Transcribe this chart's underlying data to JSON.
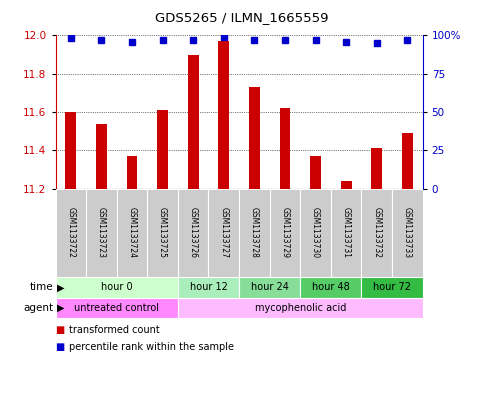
{
  "title": "GDS5265 / ILMN_1665559",
  "samples": [
    "GSM1133722",
    "GSM1133723",
    "GSM1133724",
    "GSM1133725",
    "GSM1133726",
    "GSM1133727",
    "GSM1133728",
    "GSM1133729",
    "GSM1133730",
    "GSM1133731",
    "GSM1133732",
    "GSM1133733"
  ],
  "bar_values": [
    11.6,
    11.54,
    11.37,
    11.61,
    11.9,
    11.97,
    11.73,
    11.62,
    11.37,
    11.24,
    11.41,
    11.49
  ],
  "percentile_values": [
    98,
    97,
    96,
    97,
    97,
    99,
    97,
    97,
    97,
    96,
    95,
    97
  ],
  "bar_color": "#CC0000",
  "percentile_color": "#0000CC",
  "ylim_left": [
    11.2,
    12.0
  ],
  "ylim_right": [
    0,
    100
  ],
  "yticks_left": [
    11.2,
    11.4,
    11.6,
    11.8,
    12.0
  ],
  "yticks_right": [
    0,
    25,
    50,
    75,
    100
  ],
  "yticklabels_right": [
    "0",
    "25",
    "50",
    "75",
    "100%"
  ],
  "time_groups": [
    {
      "label": "hour 0",
      "indices": [
        0,
        1,
        2,
        3
      ],
      "color": "#ccffcc"
    },
    {
      "label": "hour 12",
      "indices": [
        4,
        5
      ],
      "color": "#aaeebb"
    },
    {
      "label": "hour 24",
      "indices": [
        6,
        7
      ],
      "color": "#88dd99"
    },
    {
      "label": "hour 48",
      "indices": [
        8,
        9
      ],
      "color": "#55cc66"
    },
    {
      "label": "hour 72",
      "indices": [
        10,
        11
      ],
      "color": "#33bb44"
    }
  ],
  "agent_groups": [
    {
      "label": "untreated control",
      "indices": [
        0,
        1,
        2,
        3
      ],
      "color": "#ff88ff"
    },
    {
      "label": "mycophenolic acid",
      "indices": [
        4,
        5,
        6,
        7,
        8,
        9,
        10,
        11
      ],
      "color": "#ffbbff"
    }
  ],
  "legend_bar_label": "transformed count",
  "legend_pct_label": "percentile rank within the sample",
  "bar_color_legend": "#CC0000",
  "pct_color_legend": "#0000CC",
  "bar_width": 0.35,
  "box_color": "#cccccc"
}
